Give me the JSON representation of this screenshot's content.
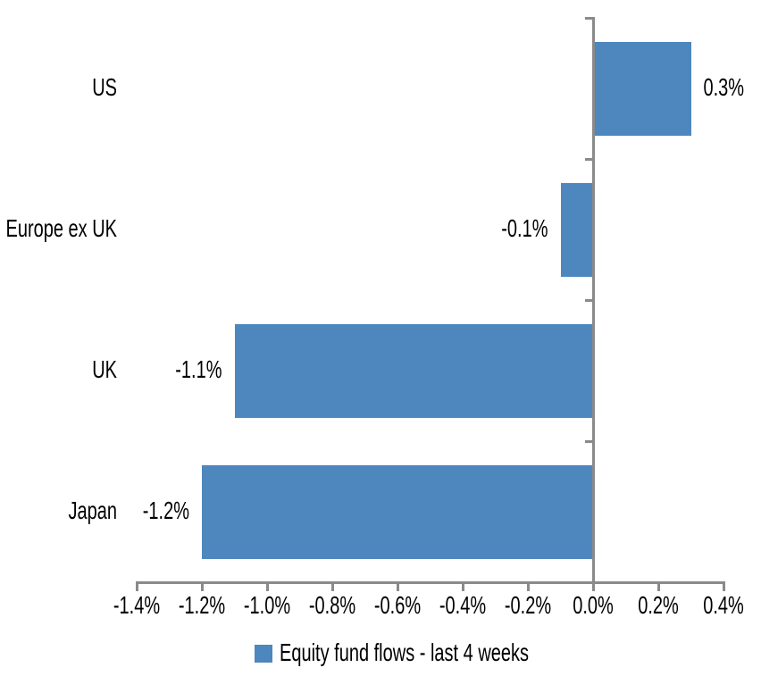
{
  "chart_data": {
    "type": "bar",
    "orientation": "horizontal",
    "title": "",
    "categories": [
      "US",
      "Europe ex UK",
      "UK",
      "Japan"
    ],
    "values": [
      0.3,
      -0.1,
      -1.1,
      -1.2
    ],
    "value_labels": [
      "0.3%",
      "-0.1%",
      "-1.1%",
      "-1.2%"
    ],
    "x_tick_values": [
      -1.4,
      -1.2,
      -1.0,
      -0.8,
      -0.6,
      -0.4,
      -0.2,
      0.0,
      0.2,
      0.4
    ],
    "x_tick_labels": [
      "-1.4%",
      "-1.2%",
      "-1.0%",
      "-0.8%",
      "-0.6%",
      "-0.4%",
      "-0.2%",
      "0.0%",
      "0.2%",
      "0.4%"
    ],
    "xlim": [
      -1.4,
      0.4
    ],
    "xlabel": "",
    "ylabel": "",
    "grid": false,
    "legend": {
      "position": "bottom",
      "entries": [
        {
          "label": "Equity fund flows - last 4 weeks",
          "swatch_color": "#4E86BE"
        }
      ]
    },
    "colors": {
      "bar": "#4E86BE",
      "axis": "#8A8A8A",
      "text": "#000000",
      "background": "#FFFFFF"
    }
  }
}
